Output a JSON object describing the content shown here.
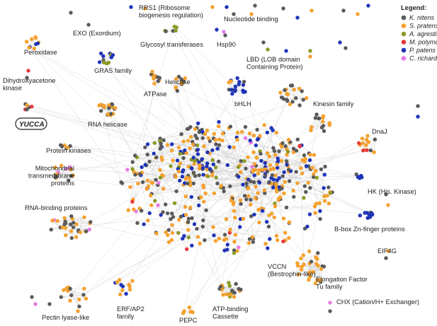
{
  "legend": {
    "title": "Legend:",
    "species": [
      {
        "name": "K. nitens",
        "color": "#5a5a5a"
      },
      {
        "name": "S. pratensis",
        "color": "#f5a12e"
      },
      {
        "name": "A. agrestis",
        "color": "#8c9a26"
      },
      {
        "name": "M. polymorpha",
        "color": "#e8383a"
      },
      {
        "name": "P. patens",
        "color": "#1f34b8"
      },
      {
        "name": "C. richardii",
        "color": "#e67de6"
      }
    ]
  },
  "clusters": {
    "rrs1": "RRS1 (Ribosome|biogenesis regulation)",
    "nucleotide_binding": "Nucleotide binding",
    "exo": "EXO (Exordium)",
    "glycosyl": "Glycosyl transferases",
    "hsp90": "Hsp90",
    "peroxidase": "Peroxidase",
    "gras": "GRAS family",
    "lbd": "LBD (LOB domain|Containing Protein)",
    "dihydroxyacetone": "Dihydroxyacetone|kinase",
    "helicase": "Helicase",
    "atpase": "ATPase",
    "bhlh": "bHLH",
    "kinesin": "Kinesin family",
    "yucca": "YUCCA",
    "rna_helicase": "RNA helicase",
    "dnaj": "DnaJ",
    "protein_kinases": "Protein kinases",
    "mitochondrial": "Mitochondrial|transmembrane|proteins",
    "hk": "HK (His. Kinase)",
    "rna_binding": "RNA-binding proteins",
    "bbox": "B-box Zn-finger proteins",
    "eif4g": "EIF4G",
    "vccn": "VCCN|(Bestrophin-like)",
    "elongation": "Elongation Factor|Tu family",
    "erf": "ERF/AP2|family",
    "chx": "CHX (Cation/H+ Exchanger)",
    "pectin": "Pectin lyase-like",
    "pepc": "PEPC",
    "atp_binding": "ATP-binding|Cassette"
  }
}
